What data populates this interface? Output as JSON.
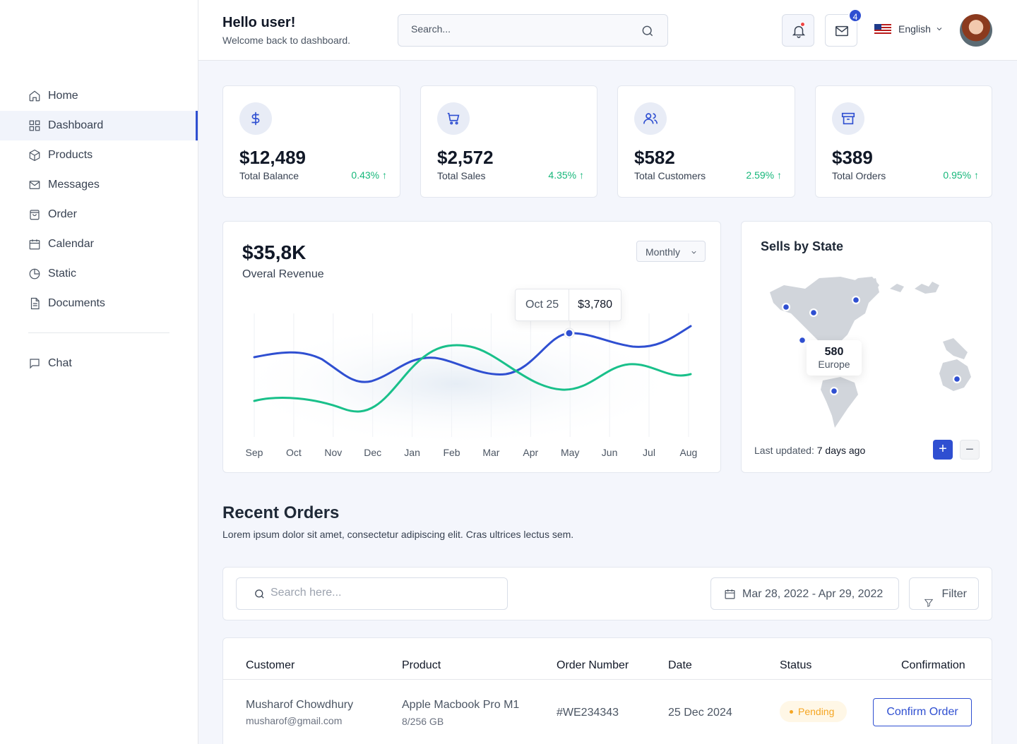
{
  "sidebar": {
    "items": [
      {
        "label": "Home",
        "icon": "home-icon"
      },
      {
        "label": "Dashboard",
        "icon": "grid-icon",
        "active": true
      },
      {
        "label": "Products",
        "icon": "box-icon"
      },
      {
        "label": "Messages",
        "icon": "mail-icon"
      },
      {
        "label": "Order",
        "icon": "bag-icon"
      },
      {
        "label": "Calendar",
        "icon": "calendar-icon"
      },
      {
        "label": "Static",
        "icon": "pie-icon"
      },
      {
        "label": "Documents",
        "icon": "document-icon"
      }
    ],
    "chat": {
      "label": "Chat",
      "icon": "chat-icon"
    }
  },
  "header": {
    "title": "Hello user!",
    "subtitle": "Welcome back to dashboard.",
    "search_placeholder": "Search...",
    "mail_badge": "4",
    "language": "English"
  },
  "stats": [
    {
      "value": "$12,489",
      "label": "Total Balance",
      "change": "0.43% ↑",
      "icon": "dollar-icon"
    },
    {
      "value": "$2,572",
      "label": "Total Sales",
      "change": "4.35% ↑",
      "icon": "cart-icon"
    },
    {
      "value": "$582",
      "label": "Total Customers",
      "change": "2.59% ↑",
      "icon": "users-icon"
    },
    {
      "value": "$389",
      "label": "Total Orders",
      "change": "0.95% ↑",
      "icon": "archive-icon"
    }
  ],
  "revenue": {
    "value": "$35,8K",
    "label": "Overal Revenue",
    "period": "Monthly",
    "tooltip_date": "Oct 25",
    "tooltip_value": "$3,780",
    "months": [
      "Sep",
      "Oct",
      "Nov",
      "Dec",
      "Jan",
      "Feb",
      "Mar",
      "Apr",
      "May",
      "Jun",
      "Jul",
      "Aug"
    ],
    "colors": {
      "series1": "#2f4fd1",
      "series2": "#19c08a"
    }
  },
  "map": {
    "title": "Sells by State",
    "tooltip_value": "580",
    "tooltip_label": "Europe",
    "updated_prefix": "Last updated:",
    "updated_value": "7 days ago"
  },
  "orders": {
    "title": "Recent Orders",
    "subtitle": "Lorem ipsum dolor sit amet, consectetur adipiscing elit. Cras ultrices lectus sem.",
    "search_placeholder": "Search here...",
    "date_range": "Mar 28, 2022 - Apr 29, 2022",
    "filter_label": "Filter",
    "columns": [
      "Customer",
      "Product",
      "Order Number",
      "Date",
      "Status",
      "Confirmation"
    ],
    "rows": [
      {
        "customer": "Musharof Chowdhury",
        "email": "musharof@gmail.com",
        "product": "Apple Macbook Pro M1",
        "spec": "8/256 GB",
        "order_number": "#WE234343",
        "date": "25 Dec 2024",
        "status": "Pending",
        "action": "Confirm Order"
      }
    ]
  }
}
